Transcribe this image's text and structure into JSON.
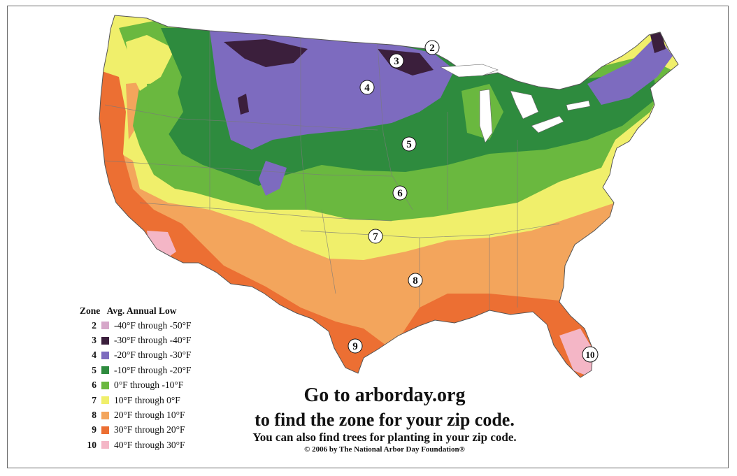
{
  "map": {
    "zone_markers": [
      "2",
      "3",
      "4",
      "5",
      "6",
      "7",
      "8",
      "9",
      "10"
    ]
  },
  "legend": {
    "header_zone": "Zone",
    "header_low": "Avg. Annual Low",
    "rows": [
      {
        "zone": "2",
        "range": "-40°F through -50°F",
        "color": "#d6a7c9"
      },
      {
        "zone": "3",
        "range": "-30°F through -40°F",
        "color": "#3b1f3c"
      },
      {
        "zone": "4",
        "range": "-20°F through -30°F",
        "color": "#7d6bbf"
      },
      {
        "zone": "5",
        "range": "-10°F through -20°F",
        "color": "#2e8b3e"
      },
      {
        "zone": "6",
        "range": "0°F through -10°F",
        "color": "#6ab83f"
      },
      {
        "zone": "7",
        "range": "10°F through 0°F",
        "color": "#f0ef6b"
      },
      {
        "zone": "8",
        "range": "20°F through 10°F",
        "color": "#f3a55c"
      },
      {
        "zone": "9",
        "range": "30°F through 20°F",
        "color": "#ec6f33"
      },
      {
        "zone": "10",
        "range": "40°F through 30°F",
        "color": "#f4b6c6"
      }
    ]
  },
  "cta": {
    "line1": "Go to arborday.org",
    "line2": "to find the zone for your zip code.",
    "line3": "You can also find trees for planting in your zip code.",
    "copyright": "© 2006 by The National Arbor Day Foundation®"
  }
}
